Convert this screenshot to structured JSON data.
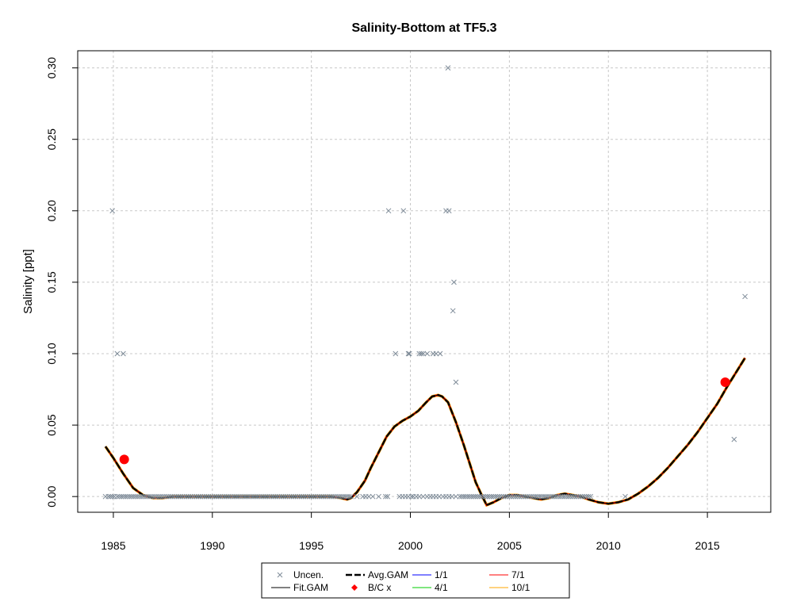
{
  "chart_data": {
    "type": "scatter",
    "title": "Salinity-Bottom at TF5.3",
    "xlabel": "",
    "ylabel": "Salinity [ppt]",
    "xlim": [
      1983.2,
      2018.2
    ],
    "ylim": [
      -0.011,
      0.312
    ],
    "x_ticks": [
      1985,
      1990,
      1995,
      2000,
      2005,
      2010,
      2015
    ],
    "y_ticks": [
      0.0,
      0.05,
      0.1,
      0.15,
      0.2,
      0.25,
      0.3
    ],
    "y_tick_labels": [
      "0.00",
      "0.05",
      "0.10",
      "0.15",
      "0.20",
      "0.25",
      "0.30"
    ],
    "grid": true,
    "legend_position": "bottom",
    "colors": {
      "uncensored": "#7f8c99",
      "fit_gam": "#000000",
      "avg_gam": "#000000",
      "bc_point": "#ff0000",
      "s_1_1": "#0000ff",
      "s_4_1": "#00cc00",
      "s_7_1": "#ff0000",
      "s_10_1": "#ffa500",
      "grid": "#c8c8c8"
    },
    "legend": [
      {
        "label": "Uncen.",
        "symbol": "x",
        "color": "#7f8c99"
      },
      {
        "label": "Fit.GAM",
        "symbol": "line",
        "color": "#000000"
      },
      {
        "label": "Avg.GAM",
        "symbol": "dashed",
        "color": "#000000"
      },
      {
        "label": "B/C x",
        "symbol": "diamond",
        "color": "#ff0000"
      },
      {
        "label": "1/1",
        "symbol": "line",
        "color": "#0000ff"
      },
      {
        "label": "4/1",
        "symbol": "line",
        "color": "#00cc00"
      },
      {
        "label": "7/1",
        "symbol": "line",
        "color": "#ff0000"
      },
      {
        "label": "10/1",
        "symbol": "line",
        "color": "#ffa500"
      }
    ],
    "uncensored_points": {
      "x": [
        1984.6,
        1984.75,
        1984.85,
        1984.95,
        1985.05,
        1985.2,
        1985.3,
        1985.4,
        1985.5,
        1985.6,
        1985.7,
        1985.8,
        1985.9,
        1986.0,
        1986.1,
        1986.2,
        1986.3,
        1986.4,
        1986.5,
        1986.6,
        1986.7,
        1986.8,
        1986.9,
        1987.0,
        1987.1,
        1987.2,
        1987.3,
        1987.4,
        1987.5,
        1987.6,
        1987.7,
        1987.8,
        1987.9,
        1988.0,
        1988.1,
        1988.2,
        1988.3,
        1988.4,
        1988.5,
        1988.6,
        1988.7,
        1988.8,
        1988.9,
        1989.0,
        1989.1,
        1989.2,
        1989.3,
        1989.4,
        1989.5,
        1989.6,
        1989.7,
        1989.8,
        1989.9,
        1990.0,
        1990.1,
        1990.2,
        1990.3,
        1990.4,
        1990.5,
        1990.6,
        1990.7,
        1990.8,
        1990.9,
        1991.0,
        1991.1,
        1991.2,
        1991.3,
        1991.4,
        1991.5,
        1991.6,
        1991.7,
        1991.8,
        1991.9,
        1992.0,
        1992.1,
        1992.2,
        1992.3,
        1992.4,
        1992.5,
        1992.6,
        1992.7,
        1992.8,
        1992.9,
        1993.0,
        1993.1,
        1993.2,
        1993.3,
        1993.4,
        1993.5,
        1993.6,
        1993.7,
        1993.8,
        1993.9,
        1994.0,
        1994.1,
        1994.2,
        1994.3,
        1994.4,
        1994.5,
        1994.6,
        1994.7,
        1994.8,
        1994.9,
        1995.0,
        1995.1,
        1995.2,
        1995.3,
        1995.4,
        1995.5,
        1995.6,
        1995.7,
        1995.8,
        1995.9,
        1996.0,
        1996.1,
        1996.2,
        1996.3,
        1996.4,
        1996.5,
        1996.6,
        1996.7,
        1996.8,
        1996.9,
        1997.0,
        1997.3,
        1997.6,
        1997.75,
        1997.9,
        1998.1,
        1998.4,
        1998.75,
        1998.85,
        1999.45,
        1999.6,
        1999.75,
        1999.9,
        2000.05,
        2000.15,
        2000.3,
        2000.45,
        2000.65,
        2000.85,
        2001.0,
        2001.15,
        2001.3,
        2001.45,
        2001.65,
        2001.8,
        2001.95,
        2002.1,
        2002.3,
        2002.5,
        2002.6,
        2002.7,
        2002.8,
        2002.9,
        2003.0,
        2003.1,
        2003.2,
        2003.3,
        2003.4,
        2003.5,
        2003.6,
        2003.7,
        2003.8,
        2003.9,
        2004.0,
        2004.1,
        2004.2,
        2004.3,
        2004.4,
        2004.5,
        2004.6,
        2004.7,
        2004.8,
        2004.9,
        2005.0,
        2005.1,
        2005.2,
        2005.3,
        2005.4,
        2005.5,
        2005.6,
        2005.7,
        2005.8,
        2005.9,
        2006.0,
        2006.1,
        2006.2,
        2006.3,
        2006.4,
        2006.5,
        2006.6,
        2006.7,
        2006.8,
        2006.9,
        2007.0,
        2007.1,
        2007.2,
        2007.3,
        2007.4,
        2007.5,
        2007.6,
        2007.7,
        2007.8,
        2007.9,
        2008.0,
        2008.1,
        2008.2,
        2008.3,
        2008.4,
        2008.5,
        2008.6,
        2008.7,
        2008.8,
        2008.9,
        2009.0,
        2009.1,
        2010.85,
        1984.95,
        1985.2,
        1985.5,
        1998.9,
        1999.25,
        1999.65,
        1999.9,
        1999.95,
        2000.45,
        2000.55,
        2000.65,
        2000.85,
        2001.15,
        2001.3,
        2001.5,
        2001.8,
        2001.9,
        2001.95,
        2002.15,
        2002.2,
        2002.3,
        2016.35,
        2016.9
      ],
      "y": [
        0,
        0,
        0,
        0,
        0,
        0,
        0,
        0,
        0,
        0,
        0,
        0,
        0,
        0,
        0,
        0,
        0,
        0,
        0,
        0,
        0,
        0,
        0,
        0,
        0,
        0,
        0,
        0,
        0,
        0,
        0,
        0,
        0,
        0,
        0,
        0,
        0,
        0,
        0,
        0,
        0,
        0,
        0,
        0,
        0,
        0,
        0,
        0,
        0,
        0,
        0,
        0,
        0,
        0,
        0,
        0,
        0,
        0,
        0,
        0,
        0,
        0,
        0,
        0,
        0,
        0,
        0,
        0,
        0,
        0,
        0,
        0,
        0,
        0,
        0,
        0,
        0,
        0,
        0,
        0,
        0,
        0,
        0,
        0,
        0,
        0,
        0,
        0,
        0,
        0,
        0,
        0,
        0,
        0,
        0,
        0,
        0,
        0,
        0,
        0,
        0,
        0,
        0,
        0,
        0,
        0,
        0,
        0,
        0,
        0,
        0,
        0,
        0,
        0,
        0,
        0,
        0,
        0,
        0,
        0,
        0,
        0,
        0,
        0,
        0,
        0,
        0,
        0,
        0,
        0,
        0,
        0,
        0,
        0,
        0,
        0,
        0,
        0,
        0,
        0,
        0,
        0,
        0,
        0,
        0,
        0,
        0,
        0,
        0,
        0,
        0,
        0,
        0,
        0,
        0,
        0,
        0,
        0,
        0,
        0,
        0,
        0,
        0,
        0,
        0,
        0,
        0,
        0,
        0,
        0,
        0,
        0,
        0,
        0,
        0,
        0,
        0,
        0,
        0,
        0,
        0,
        0,
        0,
        0,
        0,
        0,
        0,
        0,
        0,
        0,
        0,
        0,
        0,
        0,
        0,
        0,
        0,
        0,
        0,
        0,
        0,
        0,
        0,
        0,
        0,
        0,
        0,
        0,
        0,
        0,
        0,
        0,
        0,
        0,
        0,
        0,
        0,
        0,
        0,
        0.2,
        0.1,
        0.1,
        0.2,
        0.1,
        0.2,
        0.1,
        0.1,
        0.1,
        0.1,
        0.1,
        0.1,
        0.1,
        0.1,
        0.1,
        0.2,
        0.3,
        0.2,
        0.13,
        0.15,
        0.08,
        0.04,
        0.14
      ]
    },
    "fit_gam": {
      "x": [
        1984.6,
        1985.0,
        1985.5,
        1986.0,
        1986.5,
        1987.0,
        1987.5,
        1988.0,
        1989.0,
        1990.0,
        1991.0,
        1992.0,
        1993.0,
        1994.0,
        1995.0,
        1996.0,
        1996.5,
        1996.8,
        1997.0,
        1997.3,
        1997.7,
        1998.0,
        1998.4,
        1998.8,
        1999.2,
        1999.6,
        2000.0,
        2000.4,
        2000.8,
        2001.1,
        2001.4,
        2001.6,
        2001.9,
        2002.3,
        2002.7,
        2003.0,
        2003.3,
        2003.6,
        2003.85,
        2004.2,
        2004.6,
        2005.0,
        2005.4,
        2005.8,
        2006.2,
        2006.6,
        2007.0,
        2007.4,
        2007.8,
        2008.2,
        2008.6,
        2009.0,
        2009.5,
        2010.0,
        2010.5,
        2011.0,
        2011.5,
        2012.0,
        2012.5,
        2013.0,
        2013.5,
        2014.0,
        2014.5,
        2015.0,
        2015.5,
        2016.0,
        2016.5,
        2016.9
      ],
      "y": [
        0.035,
        0.027,
        0.016,
        0.006,
        0.001,
        -0.001,
        -0.001,
        0.0,
        0.0,
        0.0,
        0.0,
        0.0,
        0.0,
        0.0,
        0.0,
        0.0,
        -0.001,
        -0.002,
        -0.001,
        0.003,
        0.011,
        0.02,
        0.031,
        0.042,
        0.049,
        0.053,
        0.056,
        0.06,
        0.066,
        0.07,
        0.071,
        0.07,
        0.066,
        0.052,
        0.036,
        0.023,
        0.01,
        0.001,
        -0.006,
        -0.004,
        -0.001,
        0.001,
        0.001,
        0.0,
        -0.001,
        -0.002,
        -0.001,
        0.001,
        0.002,
        0.001,
        0.0,
        -0.002,
        -0.004,
        -0.005,
        -0.004,
        -0.002,
        0.002,
        0.007,
        0.013,
        0.02,
        0.028,
        0.036,
        0.045,
        0.055,
        0.065,
        0.077,
        0.088,
        0.097
      ]
    },
    "bc_points": {
      "x": [
        1985.55,
        2015.9
      ],
      "y": [
        0.026,
        0.08
      ]
    }
  }
}
